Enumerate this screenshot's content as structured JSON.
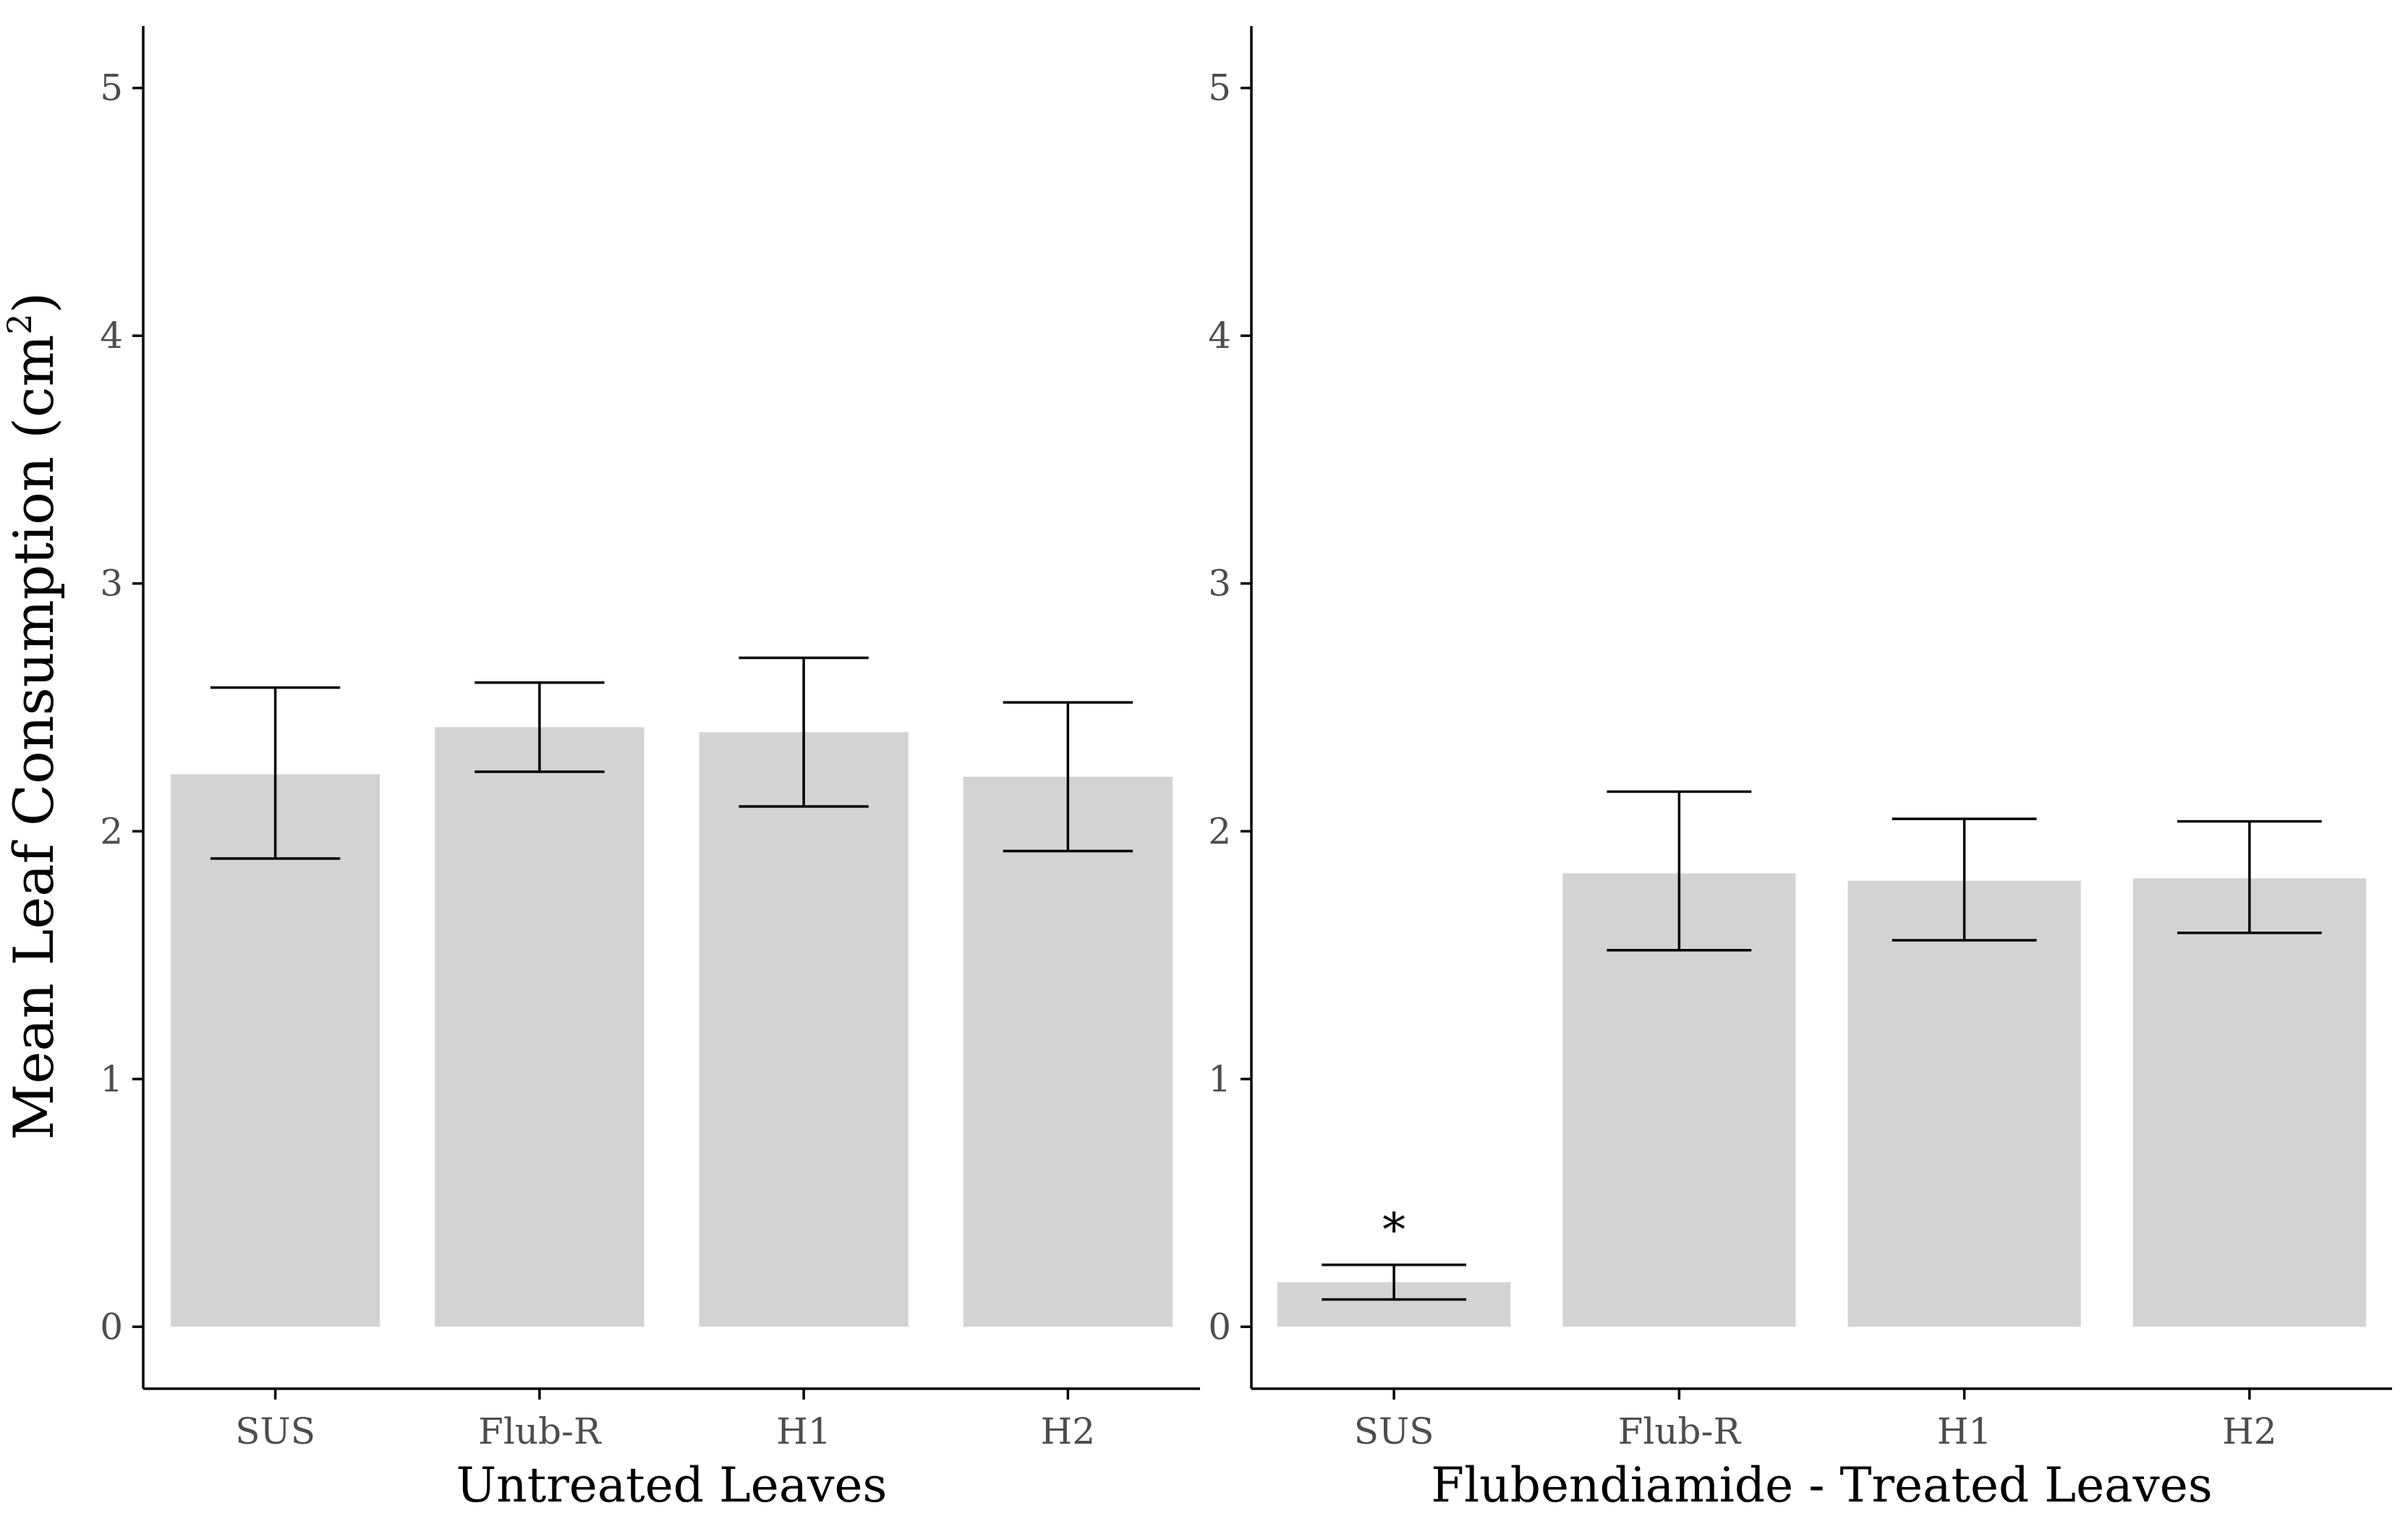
{
  "figure": {
    "ylabel_main": "Mean Leaf Consumption (cm",
    "ylabel_sup": "2",
    "ylabel_close": ")"
  },
  "colors": {
    "bar": "#d3d3d3",
    "axis": "#000000",
    "tick_text": "#4d4d4d",
    "errorbar": "#000000"
  },
  "chart_data": [
    {
      "type": "bar",
      "title": "",
      "xlabel": "Untreated Leaves",
      "ylabel": "Mean Leaf Consumption (cm2)",
      "categories": [
        "SUS",
        "Flub-R",
        "H1",
        "H2"
      ],
      "values": [
        2.23,
        2.42,
        2.4,
        2.22
      ],
      "error_low": [
        1.89,
        2.24,
        2.1,
        1.92
      ],
      "error_high": [
        2.58,
        2.6,
        2.7,
        2.52
      ],
      "annotations": [
        "",
        "",
        "",
        ""
      ],
      "ylim": [
        -0.25,
        5.25
      ],
      "yticks": [
        0,
        1,
        2,
        3,
        4,
        5
      ],
      "grid": false
    },
    {
      "type": "bar",
      "title": "",
      "xlabel": "Flubendiamide - Treated Leaves",
      "ylabel": "",
      "categories": [
        "SUS",
        "Flub-R",
        "H1",
        "H2"
      ],
      "values": [
        0.18,
        1.83,
        1.8,
        1.81
      ],
      "error_low": [
        0.11,
        1.52,
        1.56,
        1.59
      ],
      "error_high": [
        0.25,
        2.16,
        2.05,
        2.04
      ],
      "annotations": [
        "*",
        "",
        "",
        ""
      ],
      "ylim": [
        -0.25,
        5.25
      ],
      "yticks": [
        0,
        1,
        2,
        3,
        4,
        5
      ],
      "grid": false
    }
  ]
}
